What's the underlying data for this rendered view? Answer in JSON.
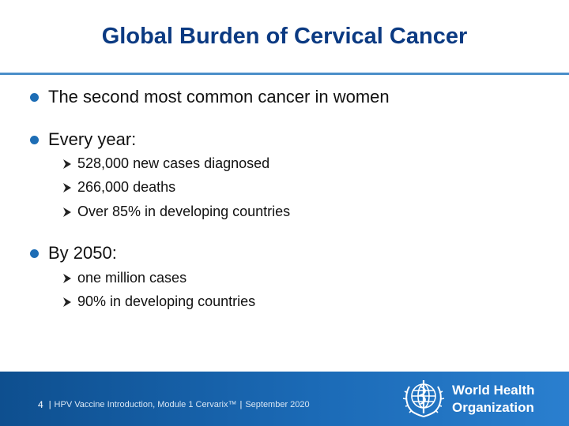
{
  "title": "Global Burden of Cervical Cancer",
  "bullets": [
    {
      "text": "The second most common cancer in women"
    },
    {
      "text": "Every year:"
    },
    {
      "text": "By 2050:"
    }
  ],
  "every_year": [
    "528,000 new cases diagnosed",
    "266,000 deaths",
    "Over 85% in developing countries"
  ],
  "by_2050": [
    "one million cases",
    "90% in developing countries"
  ],
  "footer": {
    "page_number": "4",
    "course": "HPV Vaccine Introduction, Module 1 Cervarix™",
    "date": "September 2020",
    "org_line1": "World Health",
    "org_line2": "Organization"
  },
  "colors": {
    "title": "#0b3a82",
    "accent": "#1d6db5",
    "footer_bg": "#1b6ab6"
  }
}
